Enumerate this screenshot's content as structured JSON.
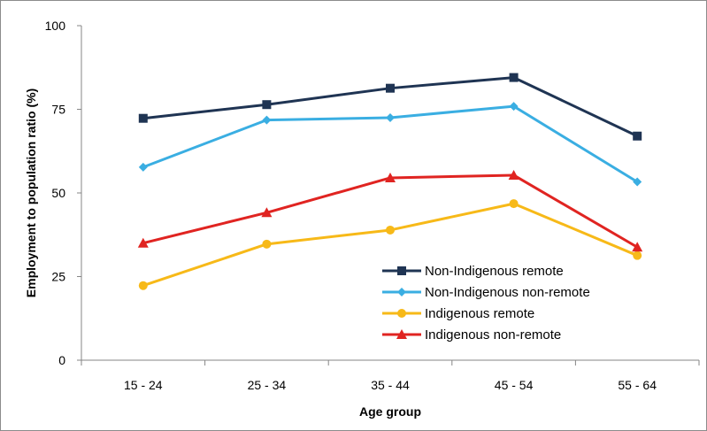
{
  "chart_data": {
    "type": "line",
    "title": "",
    "xlabel": "Age group",
    "ylabel": "Employment to population ratio (%)",
    "categories": [
      "15 - 24",
      "25 - 34",
      "35 - 44",
      "45 - 54",
      "55 - 64"
    ],
    "ylim": [
      0,
      100
    ],
    "yticks": [
      0,
      25,
      50,
      75,
      100
    ],
    "grid": false,
    "legend_position": "bottom-right",
    "series": [
      {
        "name": "Non-Indigenous remote",
        "marker": "square",
        "color": "#1f3453",
        "values": [
          72.3,
          76.4,
          81.3,
          84.5,
          67.0
        ]
      },
      {
        "name": "Non-Indigenous non-remote",
        "marker": "diamond",
        "color": "#3aaee2",
        "values": [
          57.7,
          71.8,
          72.5,
          75.9,
          53.3
        ]
      },
      {
        "name": "Indigenous remote",
        "marker": "circle",
        "color": "#f7b918",
        "values": [
          22.3,
          34.7,
          38.9,
          46.8,
          31.3
        ]
      },
      {
        "name": "Indigenous non-remote",
        "marker": "triangle",
        "color": "#e02421",
        "values": [
          35.0,
          44.1,
          54.5,
          55.3,
          33.8
        ]
      }
    ]
  }
}
